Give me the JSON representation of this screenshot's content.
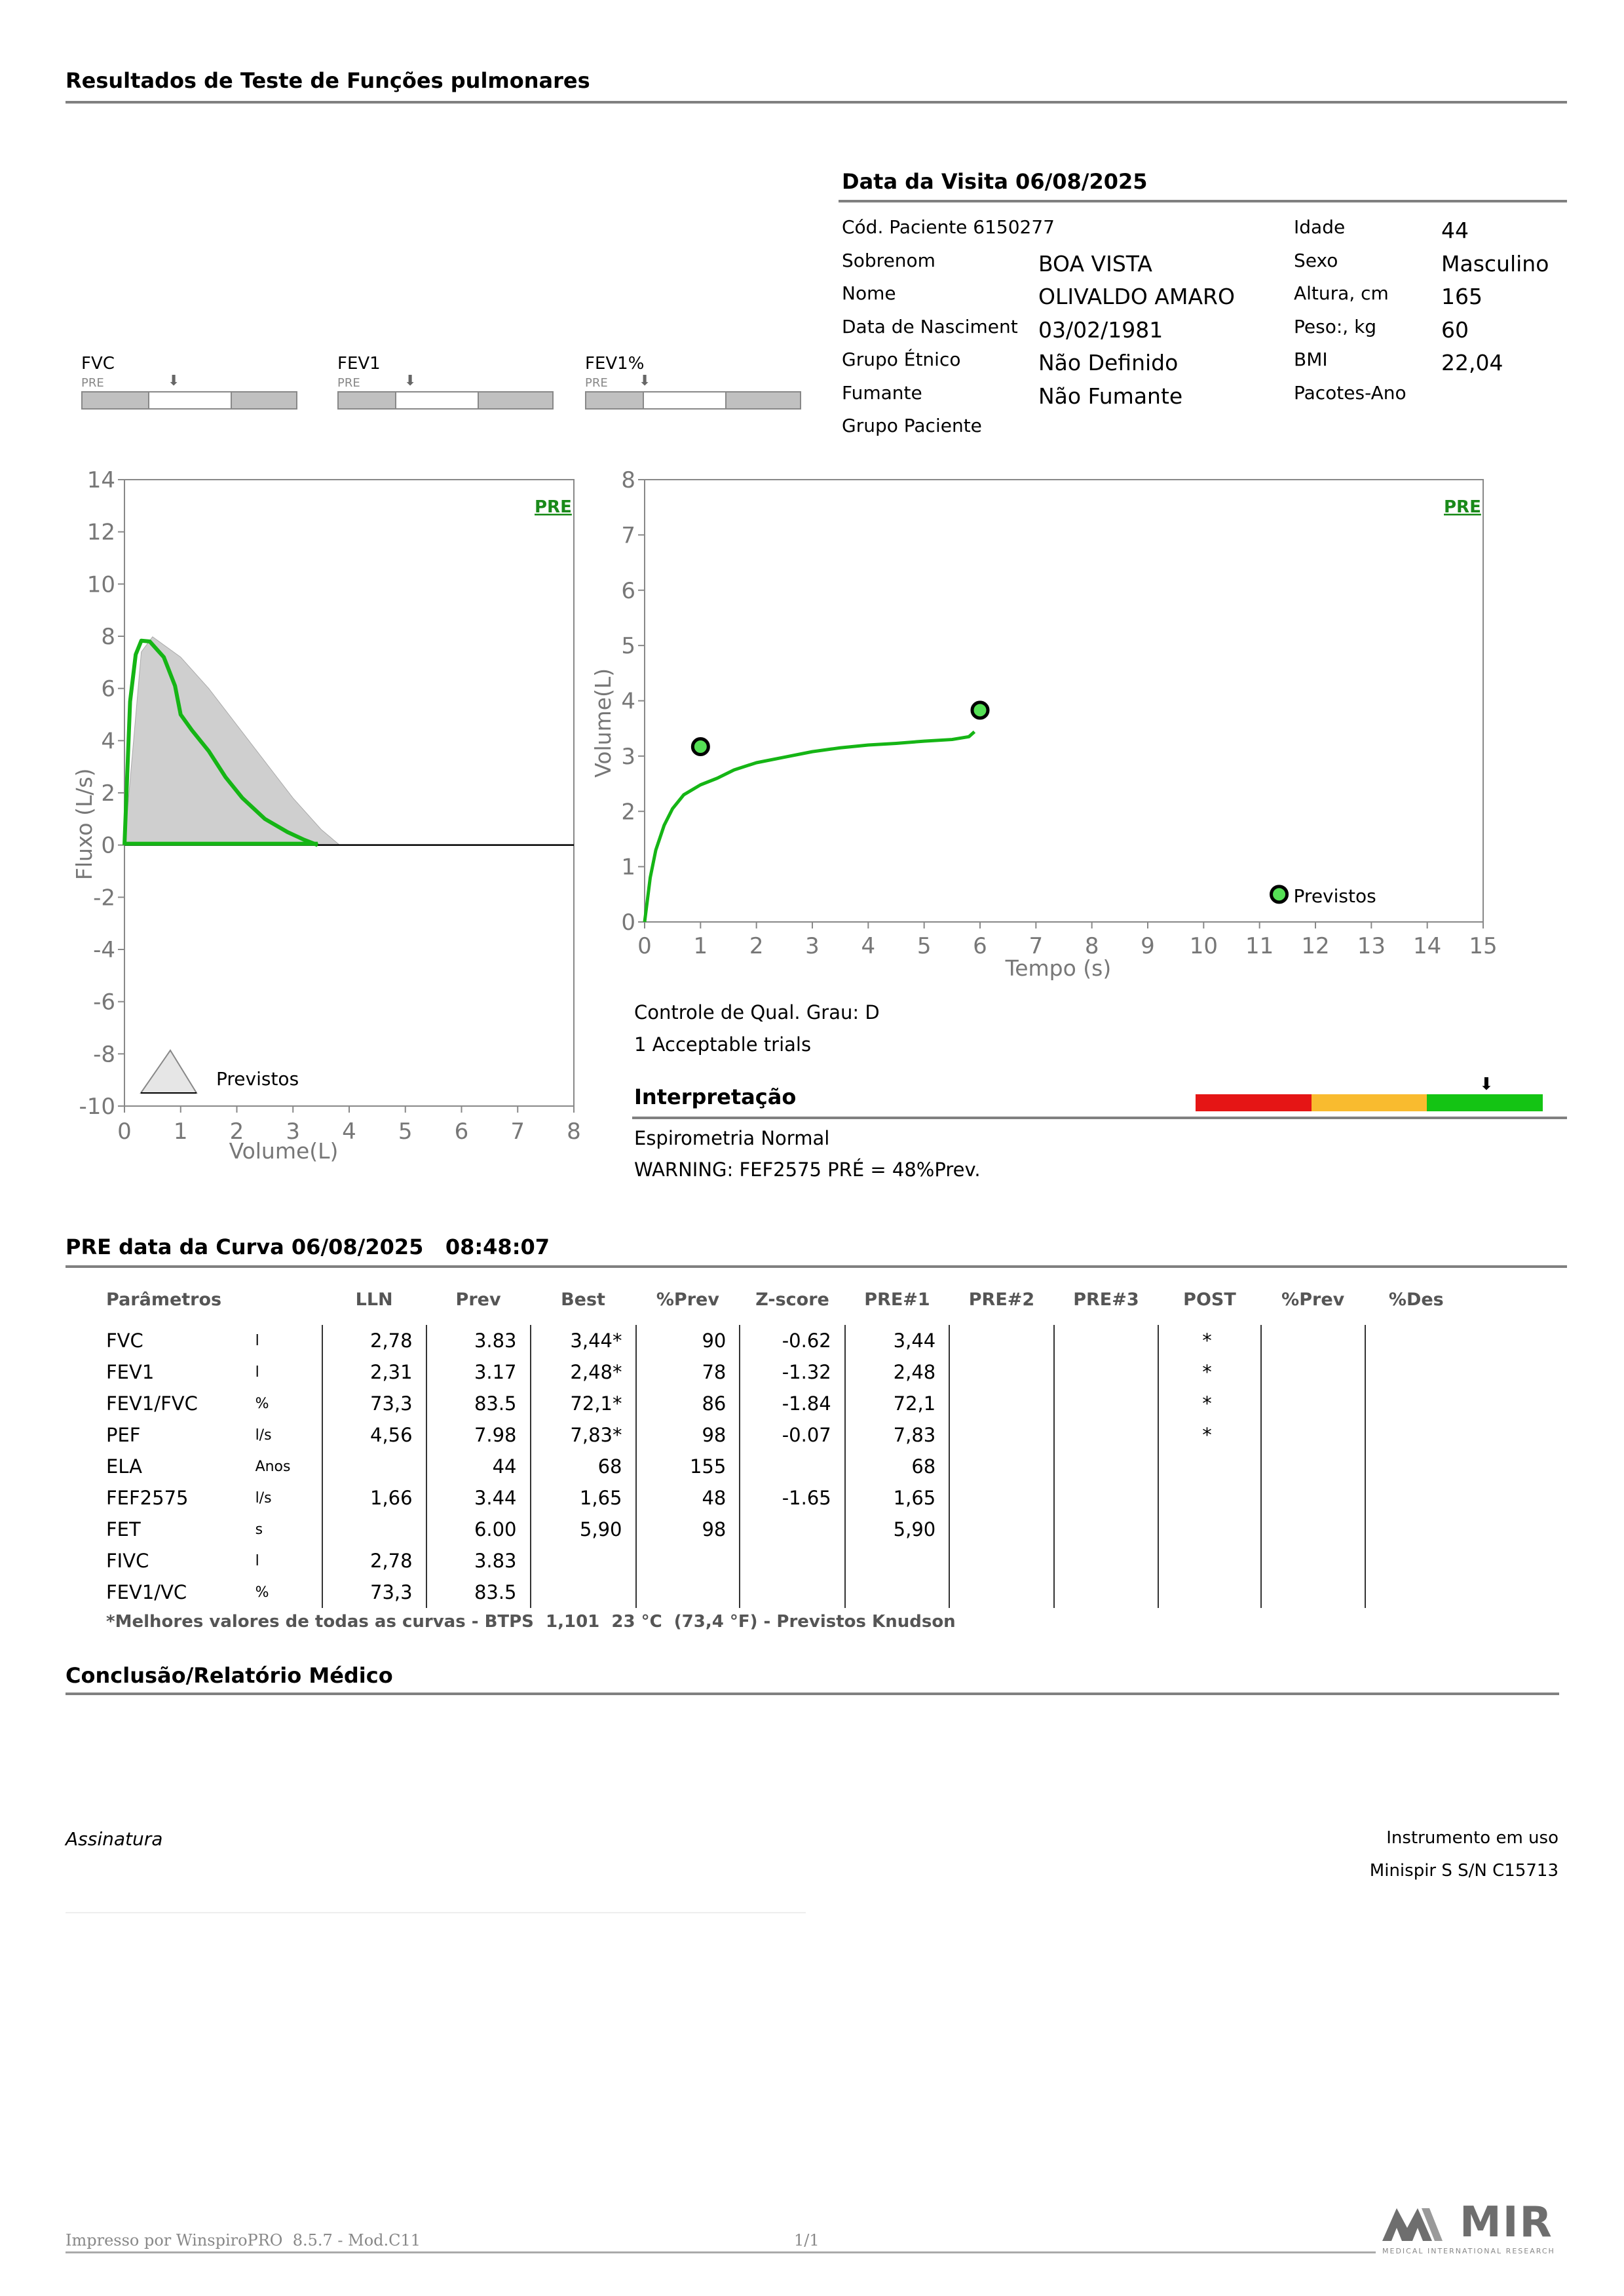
{
  "page_title": "Resultados de Teste de Funções pulmonares",
  "visit": {
    "heading": "Data da Visita 06/08/2025",
    "rows": [
      {
        "label": "Cód. Paciente 6150277",
        "value": "",
        "label2": "Idade",
        "value2": "44"
      },
      {
        "label": "Sobrenom",
        "value": "BOA VISTA",
        "label2": "Sexo",
        "value2": "Masculino"
      },
      {
        "label": "Nome",
        "value": "OLIVALDO AMARO",
        "label2": "Altura, cm",
        "value2": "165"
      },
      {
        "label": "Data de Nasciment",
        "value": "03/02/1981",
        "label2": "Peso:, kg",
        "value2": "60"
      },
      {
        "label": "Grupo Étnico",
        "value": "Não Definido",
        "label2": "BMI",
        "value2": "22,04"
      },
      {
        "label": "Fumante",
        "value": "Não Fumante",
        "label2": "Pacotes-Ano",
        "value2": ""
      },
      {
        "label": "Grupo Paciente",
        "value": "",
        "label2": "",
        "value2": ""
      }
    ]
  },
  "indicators": [
    {
      "label": "FVC",
      "sub": "PRE"
    },
    {
      "label": "FEV1",
      "sub": "PRE"
    },
    {
      "label": "FEV1%",
      "sub": "PRE"
    }
  ],
  "chart_data": [
    {
      "type": "line",
      "tag": "PRE",
      "xlabel": "Volume(L)",
      "ylabel": "Fluxo (L/s)",
      "xlim": [
        0,
        8
      ],
      "ylim": [
        -10,
        14
      ],
      "xticks": [
        "0",
        "1",
        "2",
        "3",
        "4",
        "5",
        "6",
        "7",
        "8"
      ],
      "yticks": [
        "14",
        "12",
        "10",
        "8",
        "6",
        "4",
        "2",
        "0",
        "-2",
        "-4",
        "-6",
        "-8",
        "-10"
      ],
      "legend": "Previstos",
      "predicted": {
        "x": [
          0,
          0.3,
          0.5,
          1,
          1.5,
          2,
          2.5,
          3,
          3.5,
          3.83
        ],
        "y": [
          0,
          7.4,
          7.98,
          7.2,
          6.0,
          4.6,
          3.2,
          1.8,
          0.6,
          0
        ]
      },
      "series": [
        {
          "x": [
            0,
            0.1,
            0.2,
            0.3,
            0.45,
            0.7,
            0.9,
            1.0,
            1.2,
            1.5,
            1.8,
            2.1,
            2.5,
            2.9,
            3.2,
            3.44
          ],
          "y": [
            0,
            5.5,
            7.3,
            7.83,
            7.8,
            7.2,
            6.1,
            5.0,
            4.4,
            3.6,
            2.6,
            1.8,
            1.0,
            0.5,
            0.2,
            0
          ]
        }
      ]
    },
    {
      "type": "line",
      "tag": "PRE",
      "xlabel": "Tempo (s)",
      "ylabel": "Volume(L)",
      "xlim": [
        0,
        15
      ],
      "ylim": [
        0,
        8
      ],
      "xticks": [
        "0",
        "1",
        "2",
        "3",
        "4",
        "5",
        "6",
        "7",
        "8",
        "9",
        "10",
        "11",
        "12",
        "13",
        "14",
        "15"
      ],
      "yticks": [
        "8",
        "7",
        "6",
        "5",
        "4",
        "3",
        "2",
        "1",
        "0"
      ],
      "legend": "Previstos",
      "predicted_points": [
        {
          "x": 1,
          "y": 3.17
        },
        {
          "x": 6,
          "y": 3.83
        }
      ],
      "series": [
        {
          "x": [
            0,
            0.1,
            0.2,
            0.35,
            0.5,
            0.7,
            1.0,
            1.3,
            1.6,
            2.0,
            2.5,
            3.0,
            3.5,
            4.0,
            4.5,
            5.0,
            5.5,
            5.8,
            5.9
          ],
          "y": [
            0,
            0.8,
            1.3,
            1.75,
            2.05,
            2.3,
            2.48,
            2.6,
            2.75,
            2.88,
            2.98,
            3.08,
            3.15,
            3.2,
            3.23,
            3.27,
            3.3,
            3.35,
            3.44
          ]
        }
      ]
    }
  ],
  "quality": {
    "grade": "Controle de Qual. Grau: D",
    "trials": "1 Acceptable trials"
  },
  "interpretation": {
    "heading": "Interpretação",
    "text": "Espirometria Normal",
    "warning": "WARNING: FEF2575 PRÉ = 48%Prev.",
    "colors": [
      "#e51515",
      "#f9bb2f",
      "#14c414"
    ]
  },
  "curve": {
    "heading": "PRE data da Curva 06/08/2025   08:48:07",
    "headers": [
      "Parâmetros",
      "",
      "LLN",
      "Prev",
      "Best",
      "%Prev",
      "Z-score",
      "PRE#1",
      "PRE#2",
      "PRE#3",
      "POST",
      "%Prev",
      "%Des"
    ],
    "rows": [
      [
        "FVC",
        "l",
        "2,78",
        "3.83",
        "3,44*",
        "90",
        "-0.62",
        "3,44",
        "",
        "",
        "*",
        "",
        ""
      ],
      [
        "FEV1",
        "l",
        "2,31",
        "3.17",
        "2,48*",
        "78",
        "-1.32",
        "2,48",
        "",
        "",
        "*",
        "",
        ""
      ],
      [
        "FEV1/FVC",
        "%",
        "73,3",
        "83.5",
        "72,1*",
        "86",
        "-1.84",
        "72,1",
        "",
        "",
        "*",
        "",
        ""
      ],
      [
        "PEF",
        "l/s",
        "4,56",
        "7.98",
        "7,83*",
        "98",
        "-0.07",
        "7,83",
        "",
        "",
        "*",
        "",
        ""
      ],
      [
        "ELA",
        "Anos",
        "",
        "44",
        "68",
        "155",
        "",
        "68",
        "",
        "",
        "",
        "",
        ""
      ],
      [
        "FEF2575",
        "l/s",
        "1,66",
        "3.44",
        "1,65",
        "48",
        "-1.65",
        "1,65",
        "",
        "",
        "",
        "",
        ""
      ],
      [
        "FET",
        "s",
        "",
        "6.00",
        "5,90",
        "98",
        "",
        "5,90",
        "",
        "",
        "",
        "",
        ""
      ],
      [
        "FIVC",
        "l",
        "2,78",
        "3.83",
        "",
        "",
        "",
        "",
        "",
        "",
        "",
        "",
        ""
      ],
      [
        "FEV1/VC",
        "%",
        "73,3",
        "83.5",
        "",
        "",
        "",
        "",
        "",
        "",
        "",
        "",
        ""
      ]
    ],
    "footnote": "*Melhores valores de todas as curvas - BTPS  1,101  23 °C  (73,4 °F) - Previstos Knudson"
  },
  "conclusion": {
    "heading": "Conclusão/Relatório Médico"
  },
  "signature": "Assinatura",
  "instrument": {
    "label": "Instrumento em uso",
    "value": "Minispir S S/N C15713"
  },
  "footer": {
    "printed_by": "Impresso por WinspiroPRO  8.5.7 - Mod.C11",
    "page": "1/1"
  },
  "logo": {
    "text": "MIR",
    "sub": "MEDICAL INTERNATIONAL RESEARCH"
  }
}
